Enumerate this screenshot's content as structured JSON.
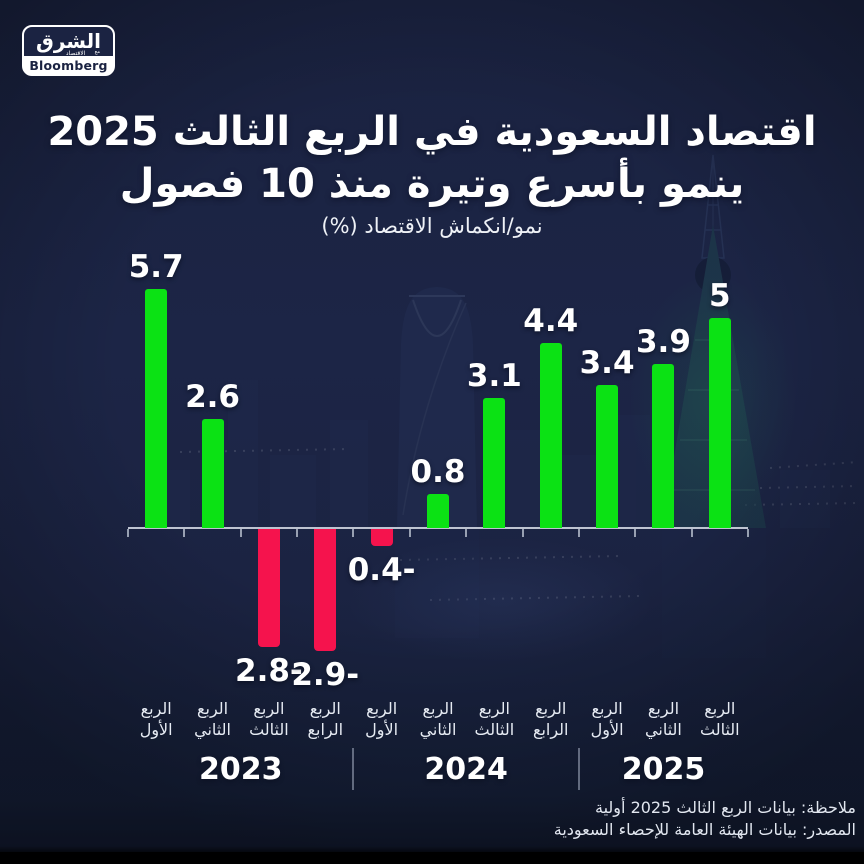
{
  "brand": {
    "logo_main": "الشرق",
    "logo_sub": "الاقتصاد",
    "logo_with": "مع",
    "logo_bloomberg": "Bloomberg"
  },
  "header": {
    "title_line1": "اقتصاد السعودية في الربع الثالث 2025",
    "title_line2": "ينمو بأسرع وتيرة منذ 10 فصول",
    "subtitle": "نمو/انكماش الاقتصاد (%)"
  },
  "chart_data": {
    "type": "bar",
    "title": "نمو/انكماش الاقتصاد (%)",
    "unit": "%",
    "categories": [
      "الربع الأول",
      "الربع الثاني",
      "الربع الثالث",
      "الربع الرابع",
      "الربع الأول",
      "الربع الثاني",
      "الربع الثالث",
      "الربع الرابع",
      "الربع الأول",
      "الربع الثاني",
      "الربع الثالث"
    ],
    "values": [
      5.7,
      2.6,
      -2.8,
      -2.9,
      -0.4,
      0.8,
      3.1,
      4.4,
      3.4,
      3.9,
      5
    ],
    "value_labels": [
      "5.7",
      "2.6",
      "2.8-",
      "2.9-",
      "0.4-",
      "0.8",
      "3.1",
      "4.4",
      "3.4",
      "3.9",
      "5"
    ],
    "year_groups": [
      {
        "label": "2023",
        "bars": 4
      },
      {
        "label": "2024",
        "bars": 4
      },
      {
        "label": "2025",
        "bars": 3
      }
    ],
    "colors": {
      "positive_bar": "#0be214",
      "negative_bar": "#f5134d",
      "background": "#1b2342",
      "text": "#ffffff",
      "axis": "#ccd1dd"
    },
    "ylim": [
      -3.5,
      6.2
    ],
    "grid": "off",
    "legend": "none",
    "baseline_note": "horizontal axis drawn at 0 with ticks at bar-slot boundaries; negative labels shown with trailing minus (Arabic style)"
  },
  "footer": {
    "note": "ملاحظة: بيانات الربع الثالث 2025 أولية",
    "source": "المصدر: بيانات الهيئة العامة للإحصاء السعودية"
  }
}
